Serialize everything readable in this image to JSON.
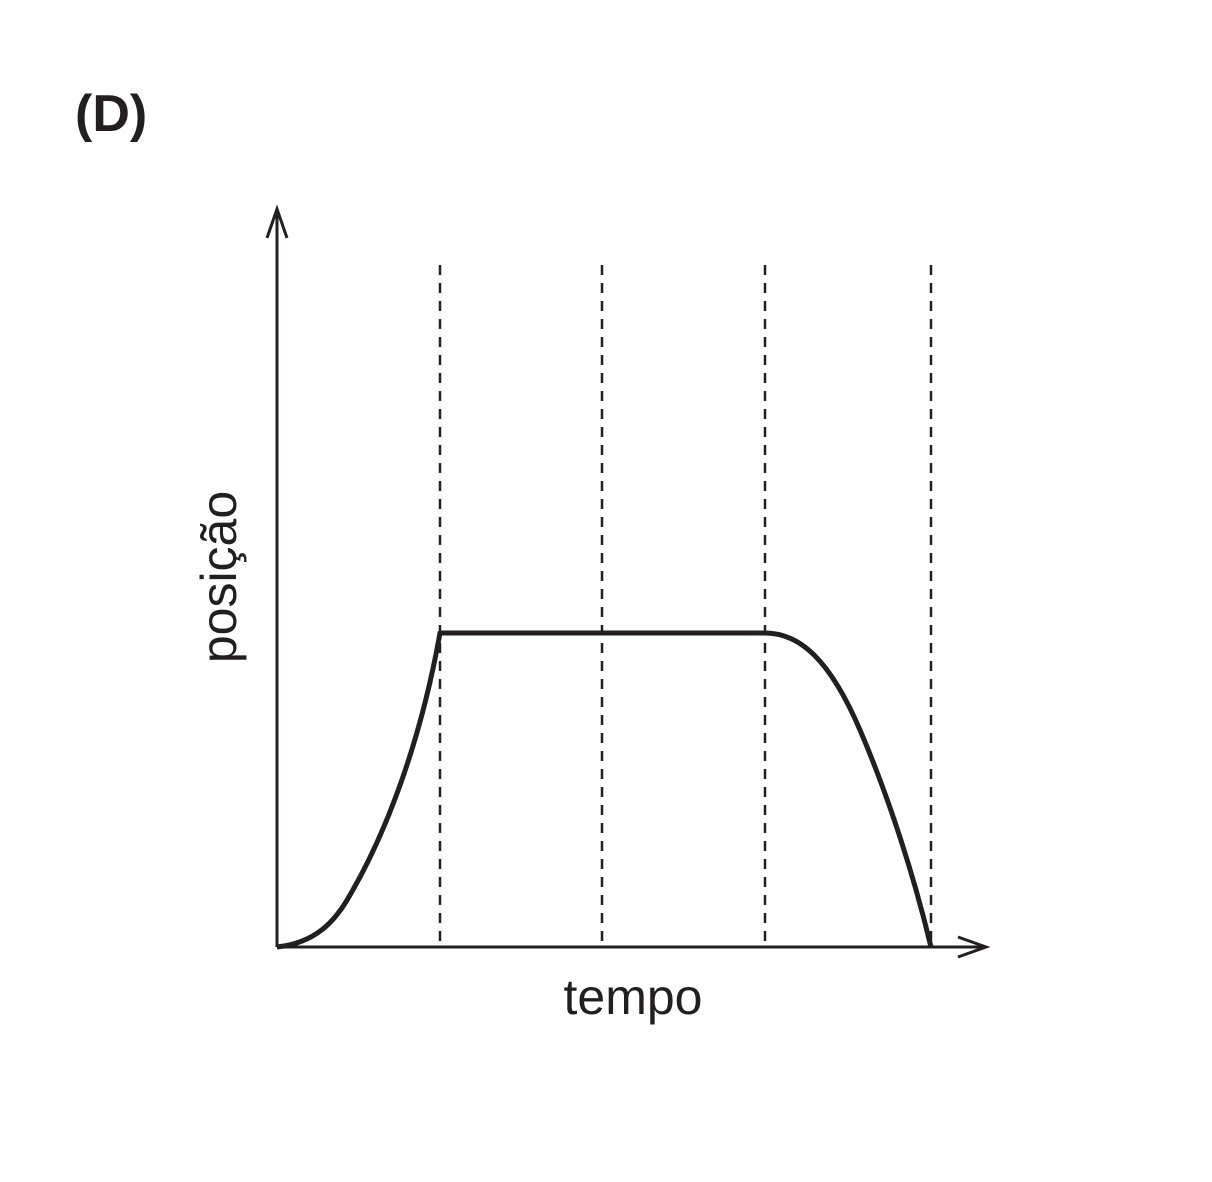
{
  "label": "(D)",
  "y_axis_label": "posição",
  "x_axis_label": "tempo"
}
